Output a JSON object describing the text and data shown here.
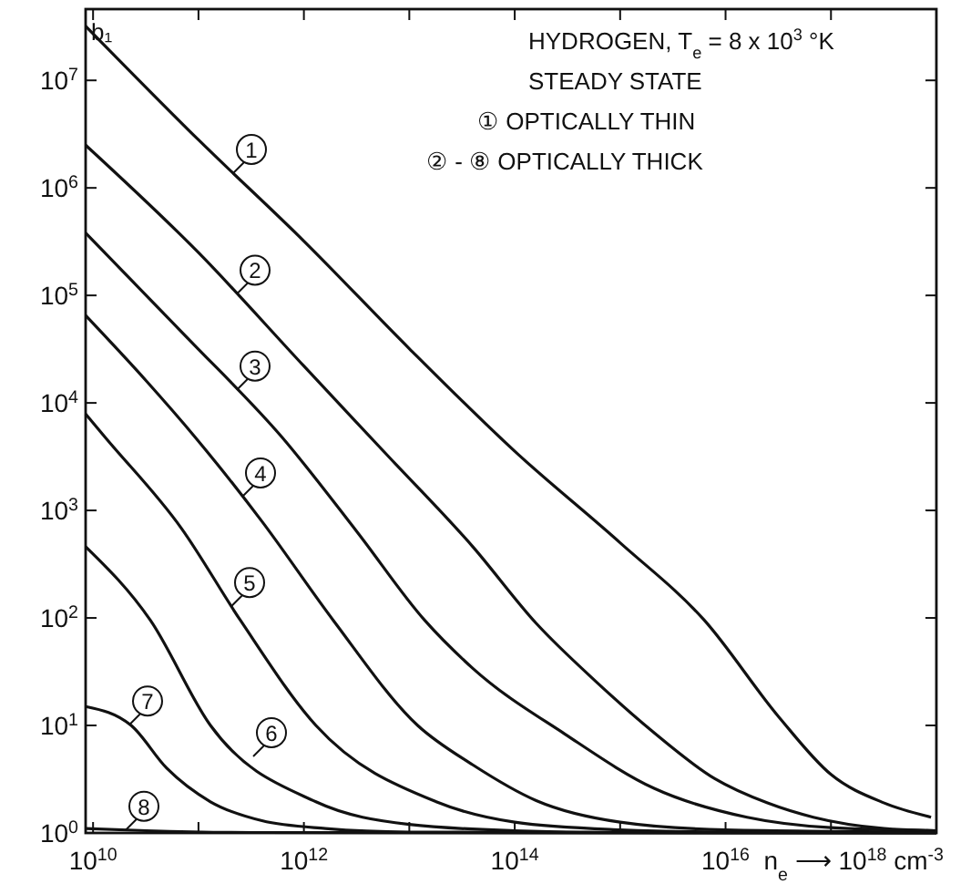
{
  "chart_data": {
    "type": "line",
    "title": "HYDROGEN, T$_{e}$ = 8 x 10$^{3}$ °K",
    "subtitle": "STEADY STATE",
    "annotations": [
      "① OPTICALLY THIN",
      "② - ⑧ OPTICALLY THICK"
    ],
    "xlabel": "n$_{e}$ ⟶ 10$^{18}$ cm$^{-3}$",
    "ylabel": "b₁",
    "log": "xy",
    "grid": false,
    "marker": "none",
    "line_style": "solid",
    "xlim": [
      8500000000.0,
      1e+18
    ],
    "ylim": [
      1,
      46000000.0
    ],
    "xticks": [
      {
        "value": 10000000000.0,
        "label": "10$^{10}$"
      },
      {
        "value": 100000000000.0,
        "label": null
      },
      {
        "value": 1000000000000.0,
        "label": "10$^{12}$"
      },
      {
        "value": 10000000000000.0,
        "label": null
      },
      {
        "value": 100000000000000.0,
        "label": "10$^{14}$"
      },
      {
        "value": 1000000000000000.0,
        "label": null
      },
      {
        "value": 1e+16,
        "label": "10$^{16}$"
      },
      {
        "value": 1e+17,
        "label": null
      },
      {
        "value": 1e+18,
        "label": null
      }
    ],
    "yticks": [
      {
        "value": 1,
        "label": "10$^{0}$"
      },
      {
        "value": 10,
        "label": "10$^{1}$"
      },
      {
        "value": 100,
        "label": "10$^{2}$"
      },
      {
        "value": 1000,
        "label": "10$^{3}$"
      },
      {
        "value": 10000,
        "label": "10$^{4}$"
      },
      {
        "value": 100000,
        "label": "10$^{5}$"
      },
      {
        "value": 1000000,
        "label": "10$^{6}$"
      },
      {
        "value": 10000000,
        "label": "10$^{7}$"
      }
    ],
    "series": [
      {
        "name": "1",
        "color": "#111111",
        "x": [
          8500000000.0,
          100000000000.0,
          1000000000000.0,
          10000000000000.0,
          100000000000000.0,
          1000000000000000.0,
          6300000000000000.0,
          3.2e+16,
          1e+17,
          3.2e+17,
          8.9e+17
        ],
        "values": [
          32000000.0,
          2800000.0,
          320000.0,
          32000.0,
          3550,
          500,
          95,
          12,
          3.5,
          1.9,
          1.4
        ]
      },
      {
        "name": "2",
        "color": "#111111",
        "x": [
          8500000000.0,
          100000000000.0,
          1000000000000.0,
          6300000000000.0,
          40000000000000.0,
          160000000000000.0,
          580000000000000.0,
          2000000000000000.0,
          7900000000000000.0,
          2.5e+16,
          6.8e+16,
          3.2e+17,
          1e+18
        ],
        "values": [
          2500000.0,
          250000.0,
          22000.0,
          3200,
          460,
          89,
          26,
          8.9,
          3.2,
          1.9,
          1.4,
          1.1,
          1.05
        ]
      },
      {
        "name": "3",
        "color": "#111111",
        "x": [
          8500000000.0,
          79000000000.0,
          620000000000.0,
          3200000000000.0,
          14000000000000.0,
          40000000000000.0,
          300000000000000.0,
          2100000000000000.0,
          1.6e+16,
          1e+17,
          1e+18
        ],
        "values": [
          380000.0,
          40000.0,
          4800,
          630,
          95,
          34,
          8.3,
          2.6,
          1.4,
          1.12,
          1.05
        ]
      },
      {
        "name": "4",
        "color": "#111111",
        "x": [
          8500000000.0,
          32000000000.0,
          93000000000.0,
          400000000000.0,
          1900000000000.0,
          12000000000000.0,
          40000000000000.0,
          160000000000000.0,
          1000000000000000.0,
          1e+16,
          1e+18
        ],
        "values": [
          65000.0,
          16000.0,
          4800,
          790,
          95,
          10,
          4.3,
          2,
          1.26,
          1.07,
          1.02
        ]
      },
      {
        "name": "5",
        "color": "#111111",
        "x": [
          8500000000.0,
          13000000000.0,
          69000000000.0,
          250000000000.0,
          1300000000000.0,
          18000000000000.0,
          100000000000000.0,
          1000000000000000.0,
          1e+16,
          1e+18
        ],
        "values": [
          7900,
          4800,
          680,
          95,
          10,
          1.95,
          1.26,
          1.07,
          1.02,
          1.01
        ]
      },
      {
        "name": "6",
        "color": "#111111",
        "x": [
          8500000000.0,
          35000000000.0,
          130000000000.0,
          1300000000000.0,
          10000000000000.0,
          100000000000000.0,
          1000000000000000.0,
          1e+18
        ],
        "values": [
          460,
          95,
          10,
          1.95,
          1.2,
          1.05,
          1.01,
          1.005
        ]
      },
      {
        "name": "7",
        "color": "#111111",
        "x": [
          8500000000.0,
          23000000000.0,
          50000000000.0,
          130000000000.0,
          400000000000.0,
          1600000000000.0,
          10000000000000.0,
          1e+18
        ],
        "values": [
          15,
          10,
          4,
          1.95,
          1.3,
          1.1,
          1.02,
          1.002
        ]
      },
      {
        "name": "8",
        "color": "#111111",
        "x": [
          8500000000.0,
          32000000000.0,
          320000000000.0,
          1e+18
        ],
        "values": [
          1.1,
          1.05,
          1.01,
          1.0
        ]
      }
    ]
  }
}
